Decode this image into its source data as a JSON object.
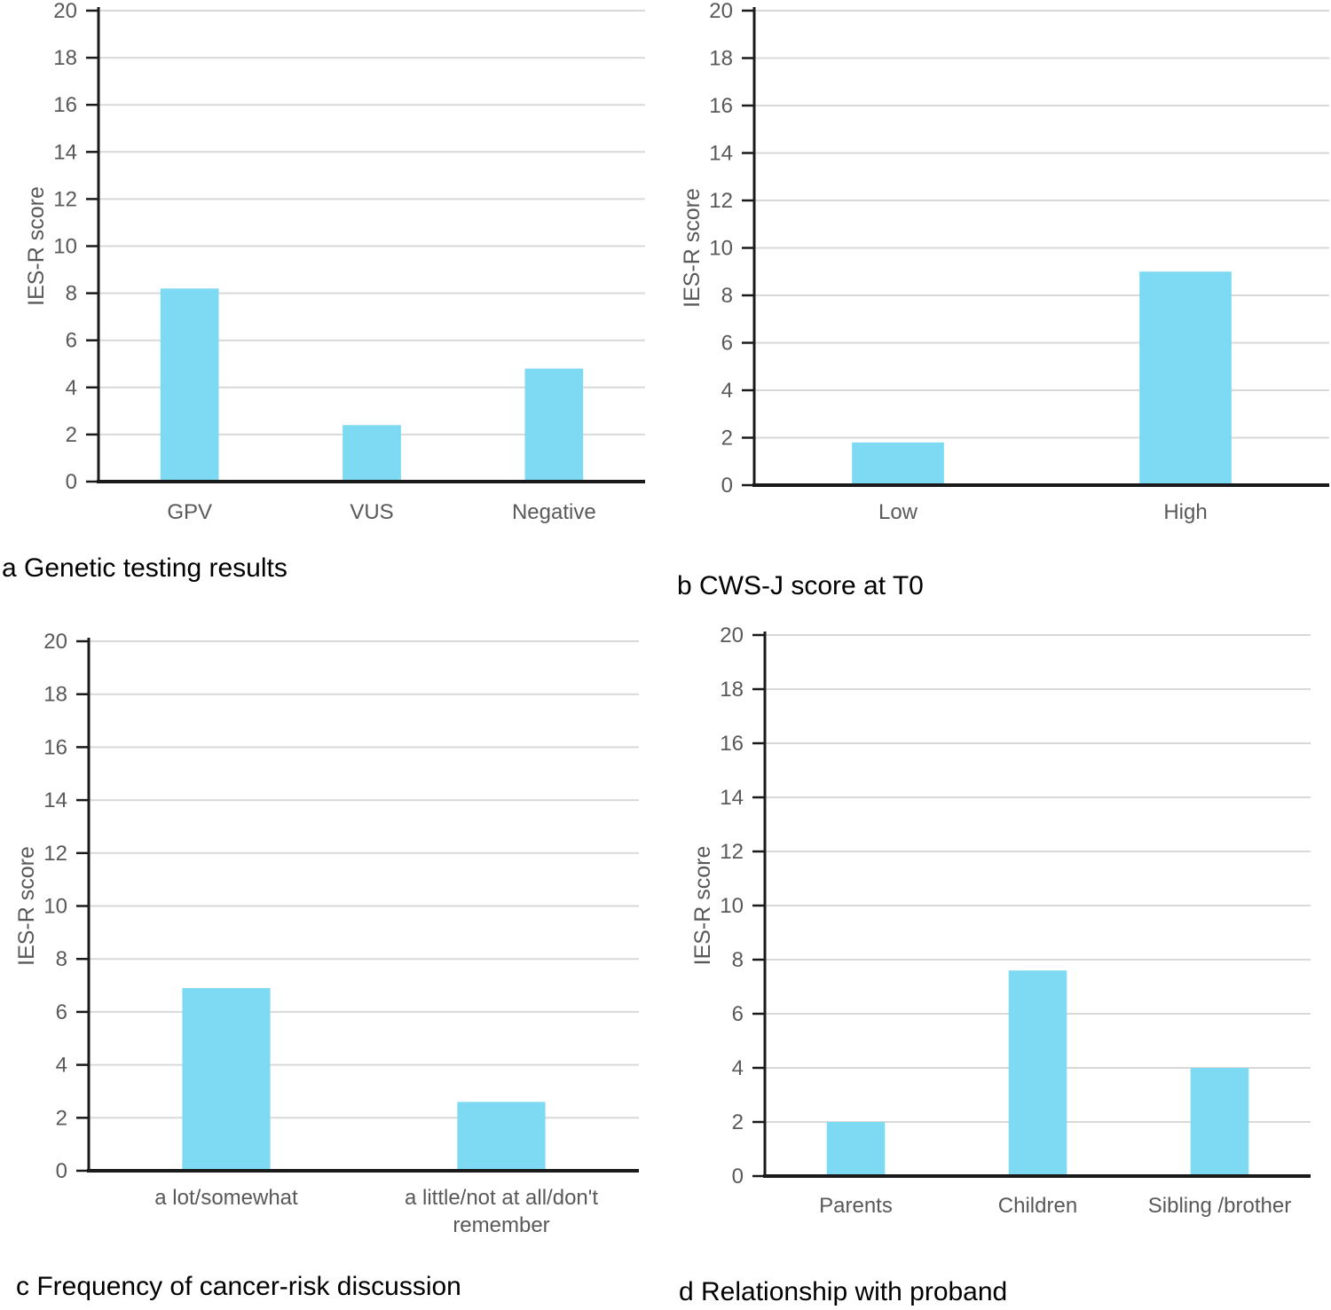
{
  "figure": {
    "background": "#ffffff",
    "colors": {
      "bar": "#7ED9F3",
      "gridline": "#D9D9D9",
      "axis": "#1A1A1A",
      "tick_text": "#595959",
      "caption_text": "#000000"
    }
  },
  "chart_data": [
    {
      "id": "a",
      "type": "bar",
      "title": "a Genetic testing results",
      "ylabel": "IES-R score",
      "ylim": [
        0,
        20
      ],
      "ytick_step": 2,
      "yticks": [
        0,
        2,
        4,
        6,
        8,
        10,
        12,
        14,
        16,
        18,
        20
      ],
      "categories": [
        "GPV",
        "VUS",
        "Negative"
      ],
      "values": [
        8.2,
        2.4,
        4.8
      ],
      "grid": true,
      "legend": "none"
    },
    {
      "id": "b",
      "type": "bar",
      "title": "b CWS-J score at T0",
      "ylabel": "IES-R score",
      "ylim": [
        0,
        20
      ],
      "ytick_step": 2,
      "yticks": [
        0,
        2,
        4,
        6,
        8,
        10,
        12,
        14,
        16,
        18,
        20
      ],
      "categories": [
        "Low",
        "High"
      ],
      "values": [
        1.8,
        9.0
      ],
      "grid": true,
      "legend": "none"
    },
    {
      "id": "c",
      "type": "bar",
      "title": "c Frequency of cancer-risk discussion",
      "ylabel": "IES-R score",
      "ylim": [
        0,
        20
      ],
      "ytick_step": 2,
      "yticks": [
        0,
        2,
        4,
        6,
        8,
        10,
        12,
        14,
        16,
        18,
        20
      ],
      "categories": [
        "a lot/somewhat",
        "a little/not at all/don't remember"
      ],
      "values": [
        6.9,
        2.6
      ],
      "grid": true,
      "legend": "none"
    },
    {
      "id": "d",
      "type": "bar",
      "title": "d Relationship with proband",
      "ylabel": "IES-R score",
      "ylim": [
        0,
        20
      ],
      "ytick_step": 2,
      "yticks": [
        0,
        2,
        4,
        6,
        8,
        10,
        12,
        14,
        16,
        18,
        20
      ],
      "categories": [
        "Parents",
        "Children",
        "Sibling /brother"
      ],
      "values": [
        2.0,
        7.6,
        4.0
      ],
      "grid": true,
      "legend": "none"
    }
  ]
}
